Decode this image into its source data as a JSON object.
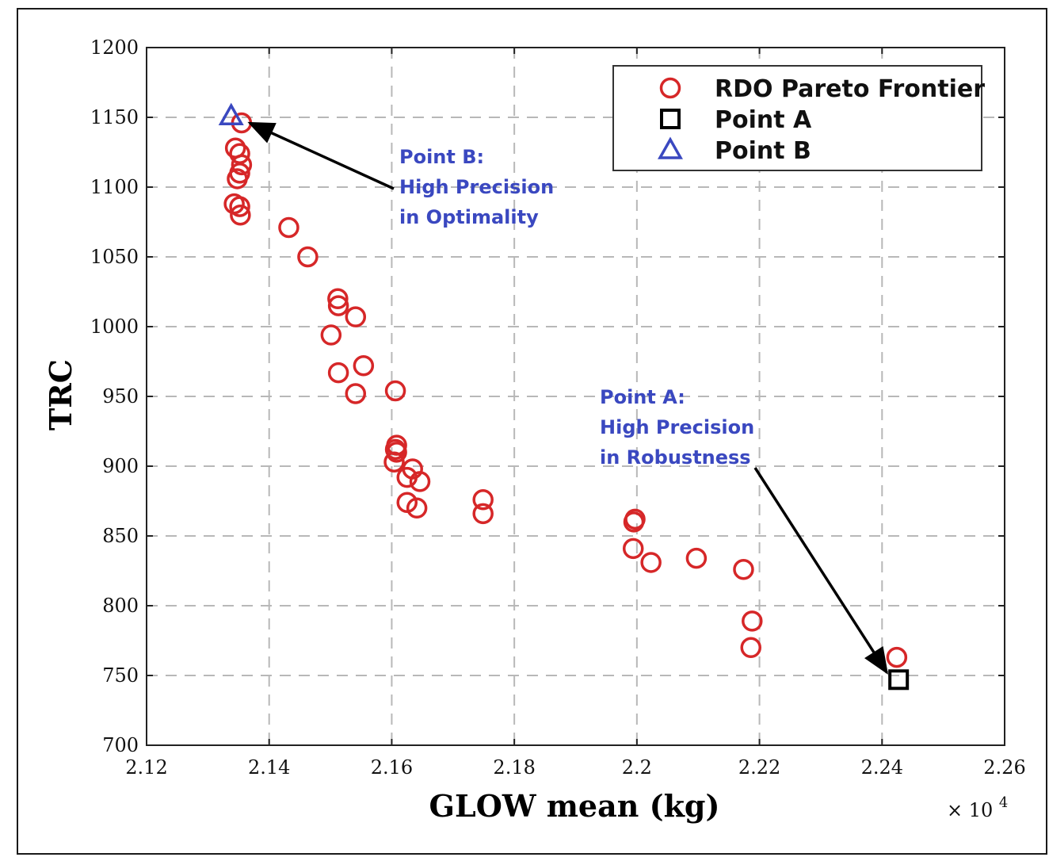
{
  "chart_data": {
    "type": "scatter",
    "title": "",
    "xlabel": "GLOW mean (kg)",
    "ylabel": "TRC",
    "x_multiplier_label": "× 10",
    "x_multiplier_exponent": "4",
    "xlim": [
      2.12,
      2.26
    ],
    "ylim": [
      700,
      1200
    ],
    "x_ticks": [
      "2.12",
      "2.14",
      "2.16",
      "2.18",
      "2.2",
      "2.22",
      "2.24",
      "2.26"
    ],
    "y_ticks": [
      "700",
      "750",
      "800",
      "850",
      "900",
      "950",
      "1000",
      "1050",
      "1100",
      "1150",
      "1200"
    ],
    "grid": true,
    "legend_position": "top-right",
    "series": [
      {
        "name": "RDO Pareto Frontier",
        "marker": "circle",
        "color": "#d62728",
        "x": [
          2.1355,
          2.1345,
          2.1352,
          2.1355,
          2.1352,
          2.1348,
          2.1343,
          2.1352,
          2.1353,
          2.1432,
          2.1463,
          2.1512,
          2.1513,
          2.1541,
          2.1501,
          2.1513,
          2.1554,
          2.1541,
          2.1606,
          2.1608,
          2.1606,
          2.1608,
          2.1604,
          2.1634,
          2.1625,
          2.1646,
          2.1625,
          2.1641,
          2.1749,
          2.1749,
          2.1997,
          2.1995,
          2.1994,
          2.2023,
          2.2097,
          2.2174,
          2.2188,
          2.2186,
          2.2424
        ],
        "y": [
          1146,
          1128,
          1124,
          1116,
          1110,
          1106,
          1088,
          1086,
          1080,
          1071,
          1050,
          1020,
          1015,
          1007,
          994,
          967,
          972,
          952,
          954,
          915,
          912,
          910,
          903,
          898,
          892,
          889,
          874,
          870,
          876,
          866,
          862,
          860,
          841,
          831,
          834,
          826,
          789,
          770,
          763
        ]
      },
      {
        "name": "Point A",
        "marker": "square",
        "color": "#000000",
        "x": [
          2.2427
        ],
        "y": [
          747
        ]
      },
      {
        "name": "Point B",
        "marker": "triangle",
        "color": "#3a48c0",
        "x": [
          2.1338
        ],
        "y": [
          1151
        ]
      }
    ],
    "annotations": [
      {
        "lines": [
          "Point B:",
          "High Precision",
          "in Optimality"
        ],
        "arrow_to": {
          "x": 2.1368,
          "y": 1146
        }
      },
      {
        "lines": [
          "Point A:",
          "High Precision",
          "in Robustness"
        ],
        "arrow_to": {
          "x": 2.2408,
          "y": 752
        }
      }
    ]
  },
  "colors": {
    "annotation": "#3a48c0",
    "grid": "#b8b8b8"
  }
}
